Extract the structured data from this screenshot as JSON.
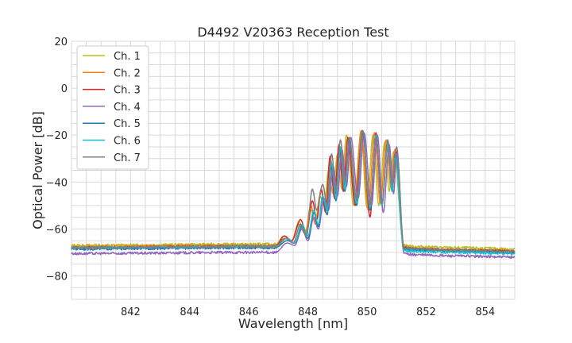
{
  "chart_data": {
    "type": "line",
    "title": "D4492 V20363 Reception Test",
    "xlabel": "Wavelength [nm]",
    "ylabel": "Optical Power [dB]",
    "xlim": [
      840,
      855
    ],
    "ylim": [
      -90,
      20
    ],
    "xticks": [
      842,
      844,
      846,
      848,
      850,
      852,
      854
    ],
    "yticks": [
      20,
      0,
      -20,
      -40,
      -60,
      -80
    ],
    "grid": true,
    "legend_position": "top-left",
    "series": [
      {
        "name": "Ch. 1",
        "color": "#bcbd22",
        "baseline": -67,
        "right_floor": -68,
        "peaks": [
          [
            847.2,
            -63
          ],
          [
            847.7,
            -57
          ],
          [
            848.1,
            -52
          ],
          [
            848.4,
            -46
          ],
          [
            848.7,
            -35
          ],
          [
            849.0,
            -28
          ],
          [
            849.3,
            -20
          ],
          [
            849.8,
            -19
          ],
          [
            850.2,
            -20
          ],
          [
            850.6,
            -23
          ],
          [
            850.9,
            -27
          ]
        ],
        "dips": [
          [
            847.45,
            -65
          ],
          [
            847.9,
            -62
          ],
          [
            848.25,
            -57
          ],
          [
            848.55,
            -50
          ],
          [
            848.85,
            -45
          ],
          [
            849.15,
            -43
          ],
          [
            849.55,
            -50
          ],
          [
            850.0,
            -51
          ],
          [
            850.4,
            -50
          ],
          [
            850.75,
            -44
          ]
        ]
      },
      {
        "name": "Ch. 2",
        "color": "#ff7f0e",
        "baseline": -67.5,
        "right_floor": -69,
        "peaks": [
          [
            847.2,
            -64
          ],
          [
            847.7,
            -58
          ],
          [
            848.1,
            -50
          ],
          [
            848.45,
            -44
          ],
          [
            848.75,
            -30
          ],
          [
            849.05,
            -25
          ],
          [
            849.35,
            -21
          ],
          [
            849.8,
            -18
          ],
          [
            850.25,
            -19
          ],
          [
            850.65,
            -22
          ],
          [
            850.95,
            -26
          ]
        ],
        "dips": [
          [
            847.45,
            -65
          ],
          [
            847.9,
            -62
          ],
          [
            848.25,
            -58
          ],
          [
            848.6,
            -52
          ],
          [
            848.9,
            -46
          ],
          [
            849.2,
            -42
          ],
          [
            849.6,
            -48
          ],
          [
            850.05,
            -52
          ],
          [
            850.45,
            -49
          ],
          [
            850.8,
            -42
          ]
        ]
      },
      {
        "name": "Ch. 3",
        "color": "#d62728",
        "baseline": -68,
        "right_floor": -69,
        "peaks": [
          [
            847.2,
            -63
          ],
          [
            847.75,
            -56
          ],
          [
            848.15,
            -48
          ],
          [
            848.45,
            -43
          ],
          [
            848.75,
            -29
          ],
          [
            849.05,
            -24
          ],
          [
            849.35,
            -21
          ],
          [
            849.85,
            -18
          ],
          [
            850.3,
            -19
          ],
          [
            850.7,
            -24
          ],
          [
            851.0,
            -27
          ]
        ],
        "dips": [
          [
            847.45,
            -65
          ],
          [
            847.95,
            -62
          ],
          [
            848.3,
            -56
          ],
          [
            848.6,
            -53
          ],
          [
            848.9,
            -47
          ],
          [
            849.2,
            -44
          ],
          [
            849.6,
            -50
          ],
          [
            850.1,
            -55
          ],
          [
            850.5,
            -50
          ],
          [
            850.85,
            -43
          ]
        ]
      },
      {
        "name": "Ch. 4",
        "color": "#9467bd",
        "baseline": -70.5,
        "right_floor": -71.5,
        "peaks": [
          [
            847.3,
            -66
          ],
          [
            847.8,
            -60
          ],
          [
            848.2,
            -55
          ],
          [
            848.55,
            -47
          ],
          [
            848.85,
            -33
          ],
          [
            849.15,
            -26
          ],
          [
            849.45,
            -21
          ],
          [
            849.9,
            -19
          ],
          [
            850.35,
            -20
          ],
          [
            850.75,
            -24
          ],
          [
            851.0,
            -28
          ]
        ],
        "dips": [
          [
            847.55,
            -67
          ],
          [
            848.0,
            -65
          ],
          [
            848.35,
            -60
          ],
          [
            848.7,
            -52
          ],
          [
            849.0,
            -46
          ],
          [
            849.3,
            -42
          ],
          [
            849.7,
            -47
          ],
          [
            850.15,
            -50
          ],
          [
            850.55,
            -53
          ],
          [
            850.9,
            -45
          ]
        ]
      },
      {
        "name": "Ch. 5",
        "color": "#1f77b4",
        "baseline": -68.5,
        "right_floor": -69.5,
        "peaks": [
          [
            847.3,
            -65
          ],
          [
            847.8,
            -59
          ],
          [
            848.2,
            -53
          ],
          [
            848.5,
            -46
          ],
          [
            848.8,
            -33
          ],
          [
            849.1,
            -26
          ],
          [
            849.4,
            -22
          ],
          [
            849.85,
            -19
          ],
          [
            850.3,
            -20
          ],
          [
            850.7,
            -23
          ],
          [
            850.95,
            -28
          ]
        ],
        "dips": [
          [
            847.55,
            -66
          ],
          [
            848.0,
            -64
          ],
          [
            848.35,
            -59
          ],
          [
            848.65,
            -54
          ],
          [
            848.95,
            -48
          ],
          [
            849.25,
            -44
          ],
          [
            849.65,
            -50
          ],
          [
            850.1,
            -52
          ],
          [
            850.5,
            -50
          ],
          [
            850.85,
            -44
          ]
        ]
      },
      {
        "name": "Ch. 6",
        "color": "#17becf",
        "baseline": -68,
        "right_floor": -70,
        "peaks": [
          [
            847.3,
            -64
          ],
          [
            847.8,
            -58
          ],
          [
            848.2,
            -52
          ],
          [
            848.5,
            -46
          ],
          [
            848.8,
            -32
          ],
          [
            849.1,
            -25
          ],
          [
            849.4,
            -21
          ],
          [
            849.85,
            -18
          ],
          [
            850.3,
            -20
          ],
          [
            850.7,
            -24
          ],
          [
            850.95,
            -29
          ]
        ],
        "dips": [
          [
            847.55,
            -66
          ],
          [
            848.0,
            -63
          ],
          [
            848.35,
            -58
          ],
          [
            848.65,
            -52
          ],
          [
            848.95,
            -47
          ],
          [
            849.25,
            -43
          ],
          [
            849.65,
            -49
          ],
          [
            850.1,
            -51
          ],
          [
            850.5,
            -50
          ],
          [
            850.85,
            -44
          ]
        ]
      },
      {
        "name": "Ch. 7",
        "color": "#7f7f7f",
        "baseline": -68,
        "right_floor": -69,
        "peaks": [
          [
            847.25,
            -64
          ],
          [
            847.75,
            -58
          ],
          [
            848.15,
            -43
          ],
          [
            848.5,
            -41
          ],
          [
            848.8,
            -28
          ],
          [
            849.1,
            -22
          ],
          [
            849.4,
            -21
          ],
          [
            849.85,
            -18
          ],
          [
            850.3,
            -21
          ],
          [
            850.7,
            -22
          ],
          [
            851.0,
            -25
          ]
        ],
        "dips": [
          [
            847.5,
            -66
          ],
          [
            847.95,
            -63
          ],
          [
            848.3,
            -52
          ],
          [
            848.65,
            -50
          ],
          [
            848.95,
            -44
          ],
          [
            849.25,
            -40
          ],
          [
            849.65,
            -47
          ],
          [
            850.1,
            -50
          ],
          [
            850.5,
            -49
          ],
          [
            850.85,
            -41
          ]
        ]
      }
    ]
  }
}
